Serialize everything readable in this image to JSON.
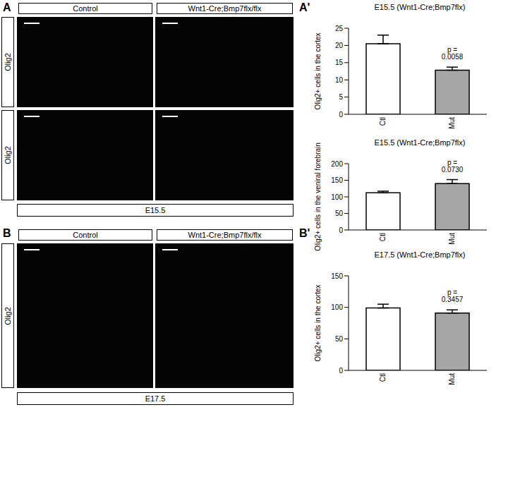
{
  "figure": {
    "panel_labels": [
      "A",
      "A'",
      "B",
      "B'"
    ],
    "column_headers": [
      "Control",
      "Wnt1-Cre;Bmp7flx/flx"
    ],
    "row_label": "Olig2",
    "stage_labels": [
      "E15.5",
      "E17.5"
    ]
  },
  "chart_data": [
    {
      "type": "bar",
      "title": "E15.5 (Wnt1-Cre;Bmp7flx)",
      "y_label": "Olig2+ cells in the cortex",
      "categories": [
        "Ctl",
        "Mut"
      ],
      "values": [
        20.5,
        12.8
      ],
      "errors": [
        2.5,
        0.9
      ],
      "colors": [
        "#ffffff",
        "#a6a6a6"
      ],
      "ylim": [
        0,
        25
      ],
      "yticks": [
        0,
        5,
        10,
        15,
        20,
        25
      ],
      "annotation": "p = 0.0058"
    },
    {
      "type": "bar",
      "title": "E15.5 (Wnt1-Cre;Bmp7flx)",
      "y_label": "Olig2+ cells in the veniral forebrain",
      "categories": [
        "Ctl",
        "Mut"
      ],
      "values": [
        112,
        140
      ],
      "errors": [
        5,
        12
      ],
      "colors": [
        "#ffffff",
        "#a6a6a6"
      ],
      "ylim": [
        0,
        200
      ],
      "yticks": [
        0,
        50,
        100,
        150,
        200
      ],
      "annotation": "p = 0.0730"
    },
    {
      "type": "bar",
      "title": "E17.5 (Wnt1-Cre;Bmp7flx)",
      "y_label": "Olig2+ cells in the cortex",
      "categories": [
        "Ctl",
        "Mut"
      ],
      "values": [
        99,
        91
      ],
      "errors": [
        6,
        5
      ],
      "colors": [
        "#ffffff",
        "#a6a6a6"
      ],
      "ylim": [
        0,
        150
      ],
      "yticks": [
        0,
        50,
        100,
        150
      ],
      "annotation": "p = 0.3457"
    }
  ]
}
